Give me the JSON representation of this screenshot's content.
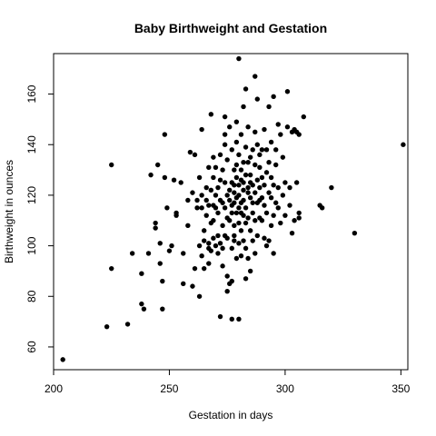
{
  "chart_data": {
    "type": "scatter",
    "title": "Baby Birthweight and Gestation",
    "xlabel": "Gestation in days",
    "ylabel": "Birthweight in ounces",
    "xlim": [
      200,
      353
    ],
    "ylim": [
      51,
      176
    ],
    "xticks": [
      200,
      250,
      300,
      350
    ],
    "yticks": [
      60,
      80,
      100,
      120,
      140,
      160
    ],
    "grid": false,
    "legend": "none",
    "marker_color": "#000000",
    "points": [
      [
        204,
        55
      ],
      [
        223,
        68
      ],
      [
        232,
        69
      ],
      [
        225,
        91
      ],
      [
        225,
        132
      ],
      [
        234,
        97
      ],
      [
        238,
        77
      ],
      [
        239,
        75
      ],
      [
        238,
        89
      ],
      [
        241,
        97
      ],
      [
        242,
        128
      ],
      [
        244,
        107
      ],
      [
        244,
        109
      ],
      [
        245,
        132
      ],
      [
        246,
        101
      ],
      [
        246,
        93
      ],
      [
        247,
        86
      ],
      [
        247,
        75
      ],
      [
        248,
        144
      ],
      [
        248,
        127
      ],
      [
        249,
        115
      ],
      [
        250,
        98
      ],
      [
        251,
        100
      ],
      [
        252,
        126
      ],
      [
        253,
        113
      ],
      [
        253,
        112
      ],
      [
        255,
        125
      ],
      [
        256,
        97
      ],
      [
        256,
        85
      ],
      [
        258,
        108
      ],
      [
        258,
        118
      ],
      [
        259,
        137
      ],
      [
        260,
        121
      ],
      [
        260,
        84
      ],
      [
        261,
        91
      ],
      [
        261,
        136
      ],
      [
        262,
        118
      ],
      [
        262,
        115
      ],
      [
        263,
        80
      ],
      [
        263,
        100
      ],
      [
        263,
        127
      ],
      [
        264,
        96
      ],
      [
        264,
        115
      ],
      [
        264,
        146
      ],
      [
        264,
        120
      ],
      [
        265,
        91
      ],
      [
        265,
        106
      ],
      [
        265,
        102
      ],
      [
        266,
        112
      ],
      [
        266,
        118
      ],
      [
        266,
        123
      ],
      [
        267,
        101
      ],
      [
        267,
        131
      ],
      [
        267,
        99
      ],
      [
        267,
        93
      ],
      [
        267,
        116
      ],
      [
        268,
        109
      ],
      [
        268,
        152
      ],
      [
        268,
        122
      ],
      [
        268,
        98
      ],
      [
        269,
        103
      ],
      [
        269,
        127
      ],
      [
        269,
        116
      ],
      [
        269,
        110
      ],
      [
        269,
        135
      ],
      [
        270,
        100
      ],
      [
        270,
        131
      ],
      [
        270,
        115
      ],
      [
        270,
        120
      ],
      [
        271,
        123
      ],
      [
        271,
        104
      ],
      [
        271,
        113
      ],
      [
        271,
        97
      ],
      [
        272,
        72
      ],
      [
        272,
        126
      ],
      [
        272,
        136
      ],
      [
        272,
        101
      ],
      [
        272,
        118
      ],
      [
        273,
        130
      ],
      [
        273,
        108
      ],
      [
        273,
        117
      ],
      [
        273,
        99
      ],
      [
        273,
        92
      ],
      [
        274,
        151
      ],
      [
        274,
        140
      ],
      [
        274,
        115
      ],
      [
        274,
        104
      ],
      [
        274,
        125
      ],
      [
        274,
        144
      ],
      [
        275,
        111
      ],
      [
        275,
        120
      ],
      [
        275,
        88
      ],
      [
        275,
        82
      ],
      [
        275,
        134
      ],
      [
        275,
        103
      ],
      [
        276,
        118
      ],
      [
        276,
        110
      ],
      [
        276,
        147
      ],
      [
        276,
        122
      ],
      [
        276,
        85
      ],
      [
        277,
        113
      ],
      [
        277,
        125
      ],
      [
        277,
        99
      ],
      [
        277,
        86
      ],
      [
        277,
        138
      ],
      [
        277,
        116
      ],
      [
        277,
        71
      ],
      [
        278,
        102
      ],
      [
        278,
        121
      ],
      [
        278,
        108
      ],
      [
        278,
        124
      ],
      [
        278,
        130
      ],
      [
        278,
        117
      ],
      [
        278,
        104
      ],
      [
        279,
        132
      ],
      [
        279,
        113
      ],
      [
        279,
        127
      ],
      [
        279,
        95
      ],
      [
        279,
        141
      ],
      [
        279,
        119
      ],
      [
        279,
        149
      ],
      [
        280,
        174
      ],
      [
        280,
        115
      ],
      [
        280,
        124
      ],
      [
        280,
        109
      ],
      [
        280,
        136
      ],
      [
        280,
        120
      ],
      [
        280,
        71
      ],
      [
        280,
        101
      ],
      [
        281,
        117
      ],
      [
        281,
        106
      ],
      [
        281,
        126
      ],
      [
        281,
        113
      ],
      [
        281,
        144
      ],
      [
        281,
        130
      ],
      [
        281,
        96
      ],
      [
        282,
        155
      ],
      [
        282,
        122
      ],
      [
        282,
        112
      ],
      [
        282,
        133
      ],
      [
        282,
        125
      ],
      [
        282,
        118
      ],
      [
        282,
        102
      ],
      [
        283,
        162
      ],
      [
        283,
        109
      ],
      [
        283,
        128
      ],
      [
        283,
        139
      ],
      [
        283,
        115
      ],
      [
        283,
        99
      ],
      [
        283,
        87
      ],
      [
        284,
        121
      ],
      [
        284,
        133
      ],
      [
        284,
        111
      ],
      [
        284,
        123
      ],
      [
        284,
        147
      ],
      [
        284,
        95
      ],
      [
        285,
        125
      ],
      [
        285,
        119
      ],
      [
        285,
        106
      ],
      [
        285,
        90
      ],
      [
        285,
        135
      ],
      [
        285,
        128
      ],
      [
        286,
        117
      ],
      [
        286,
        138
      ],
      [
        286,
        102
      ],
      [
        286,
        113
      ],
      [
        286,
        124
      ],
      [
        287,
        167
      ],
      [
        287,
        121
      ],
      [
        287,
        132
      ],
      [
        287,
        110
      ],
      [
        287,
        145
      ],
      [
        287,
        97
      ],
      [
        288,
        117
      ],
      [
        288,
        126
      ],
      [
        288,
        140
      ],
      [
        288,
        104
      ],
      [
        288,
        158
      ],
      [
        289,
        123
      ],
      [
        289,
        111
      ],
      [
        289,
        136
      ],
      [
        289,
        118
      ],
      [
        289,
        131
      ],
      [
        290,
        119
      ],
      [
        290,
        138
      ],
      [
        290,
        127
      ],
      [
        290,
        110
      ],
      [
        291,
        124
      ],
      [
        291,
        103
      ],
      [
        291,
        146
      ],
      [
        291,
        116
      ],
      [
        292,
        129
      ],
      [
        292,
        113
      ],
      [
        292,
        138
      ],
      [
        292,
        100
      ],
      [
        293,
        155
      ],
      [
        293,
        121
      ],
      [
        293,
        133
      ],
      [
        293,
        102
      ],
      [
        294,
        119
      ],
      [
        294,
        141
      ],
      [
        294,
        108
      ],
      [
        294,
        127
      ],
      [
        295,
        159
      ],
      [
        295,
        112
      ],
      [
        295,
        124
      ],
      [
        295,
        97
      ],
      [
        296,
        132
      ],
      [
        296,
        117
      ],
      [
        296,
        138
      ],
      [
        297,
        123
      ],
      [
        297,
        148
      ],
      [
        297,
        115
      ],
      [
        298,
        144
      ],
      [
        298,
        109
      ],
      [
        299,
        120
      ],
      [
        299,
        135
      ],
      [
        300,
        112
      ],
      [
        300,
        125
      ],
      [
        301,
        147
      ],
      [
        301,
        161
      ],
      [
        302,
        123
      ],
      [
        302,
        116
      ],
      [
        303,
        105
      ],
      [
        303,
        145
      ],
      [
        304,
        146
      ],
      [
        304,
        110
      ],
      [
        305,
        145
      ],
      [
        305,
        125
      ],
      [
        306,
        144
      ],
      [
        306,
        113
      ],
      [
        306,
        111
      ],
      [
        308,
        151
      ],
      [
        315,
        116
      ],
      [
        316,
        115
      ],
      [
        320,
        123
      ],
      [
        330,
        105
      ],
      [
        351,
        140
      ]
    ]
  }
}
